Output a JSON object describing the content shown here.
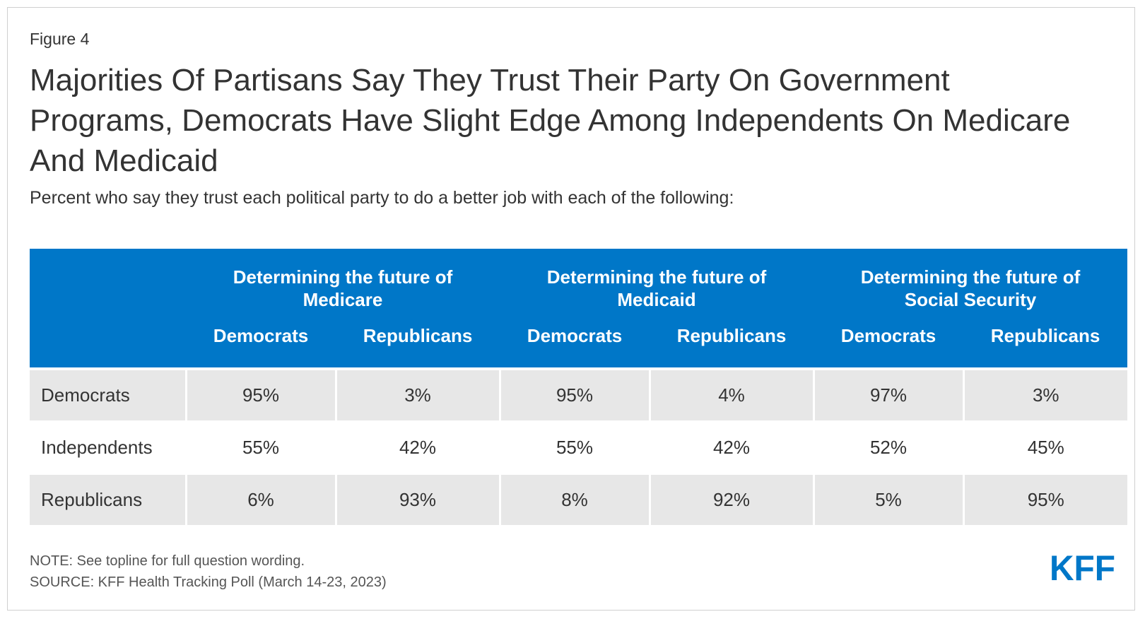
{
  "figure_label": "Figure 4",
  "title": "Majorities Of Partisans Say They Trust Their Party On Government Programs, Democrats Have Slight Edge Among Independents On Medicare And Medicaid",
  "subtitle": "Percent who say they trust each political party to do a better job with each of the following:",
  "colors": {
    "header_bg": "#0077c8",
    "header_text": "#ffffff",
    "row_shade": "#e7e7e7",
    "logo": "#0077c8"
  },
  "chart_data": {
    "type": "table",
    "column_groups": [
      {
        "label": "Determining the future of Medicare",
        "subcolumns": [
          "Democrats",
          "Republicans"
        ]
      },
      {
        "label": "Determining the future of Medicaid",
        "subcolumns": [
          "Democrats",
          "Republicans"
        ]
      },
      {
        "label": "Determining the future of Social Security",
        "subcolumns": [
          "Democrats",
          "Republicans"
        ]
      }
    ],
    "rows": [
      {
        "label": "Democrats",
        "values": [
          "95%",
          "3%",
          "95%",
          "4%",
          "97%",
          "3%"
        ]
      },
      {
        "label": "Independents",
        "values": [
          "55%",
          "42%",
          "55%",
          "42%",
          "52%",
          "45%"
        ]
      },
      {
        "label": "Republicans",
        "values": [
          "6%",
          "93%",
          "8%",
          "92%",
          "5%",
          "95%"
        ]
      }
    ]
  },
  "notes": {
    "note": "NOTE: See topline for full question wording.",
    "source": "SOURCE: KFF Health Tracking Poll (March 14-23, 2023)"
  },
  "logo_text": "KFF"
}
